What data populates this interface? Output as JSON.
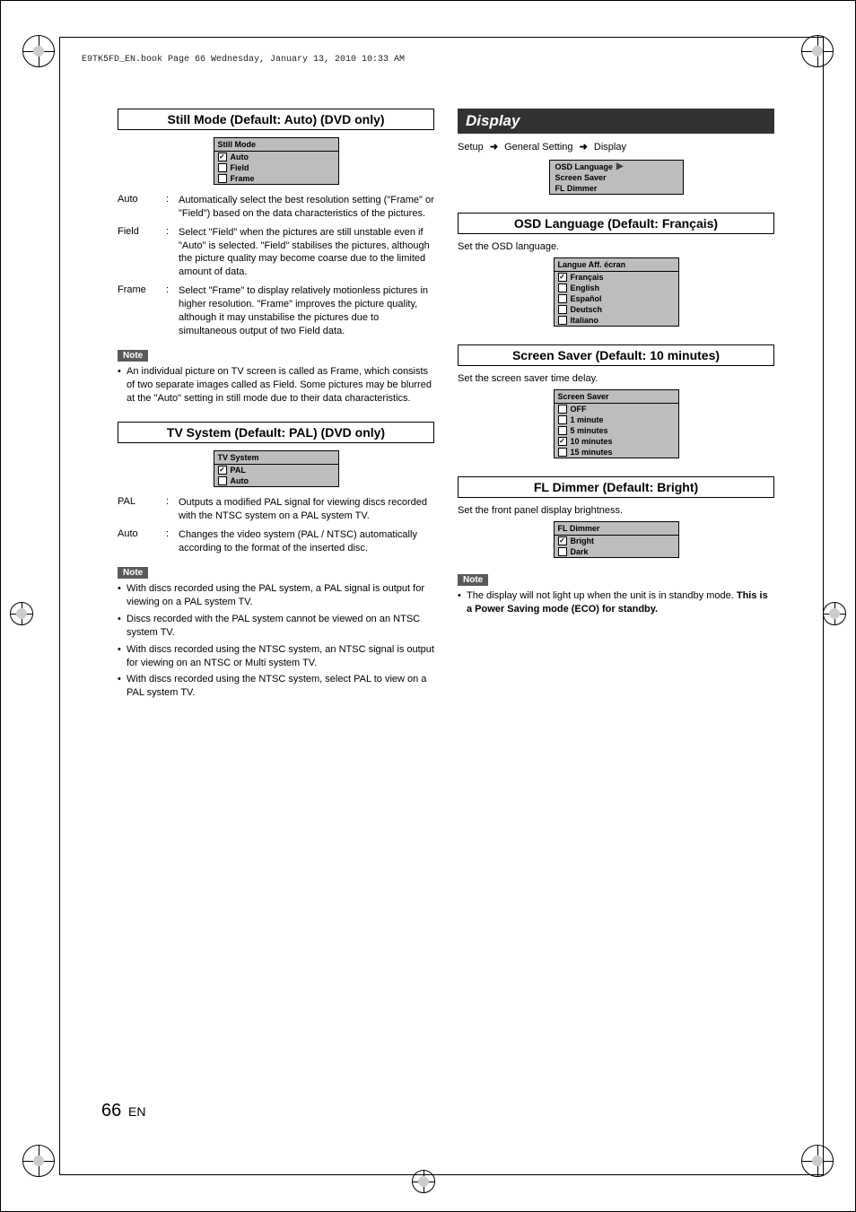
{
  "page_meta": {
    "header_line": "E9TK5FD_EN.book  Page 66  Wednesday, January 13, 2010  10:33 AM",
    "page_number": "66",
    "page_lang": "EN"
  },
  "colors": {
    "dark_header_bg": "#323232",
    "note_bg": "#5a5a5a",
    "menu_bg": "#bdbdbd"
  },
  "left": {
    "still_mode": {
      "title": "Still Mode (Default: Auto) (DVD only)",
      "menu_header": "Still Mode",
      "options": [
        {
          "label": "Auto",
          "checked": true
        },
        {
          "label": "Field",
          "checked": false
        },
        {
          "label": "Frame",
          "checked": false
        }
      ],
      "defs": [
        {
          "term": "Auto",
          "desc": "Automatically select the best resolution setting (\"Frame\" or \"Field\") based on the data characteristics of the pictures."
        },
        {
          "term": "Field",
          "desc": "Select \"Field\" when the pictures are still unstable even if \"Auto\" is selected. \"Field\" stabilises the pictures, although the picture quality may become coarse due to the limited amount of data."
        },
        {
          "term": "Frame",
          "desc": "Select \"Frame\" to display relatively motionless pictures in higher resolution. \"Frame\" improves the picture quality, although it may unstabilise the pictures due to simultaneous output of two Field data."
        }
      ],
      "note_label": "Note",
      "notes": [
        "An individual picture on TV screen is called as Frame, which consists of two separate images called as Field. Some pictures may be blurred at the \"Auto\" setting in still mode due to their data characteristics."
      ]
    },
    "tv_system": {
      "title": "TV System (Default: PAL) (DVD only)",
      "menu_header": "TV System",
      "options": [
        {
          "label": "PAL",
          "checked": true
        },
        {
          "label": "Auto",
          "checked": false
        }
      ],
      "defs": [
        {
          "term": "PAL",
          "desc": "Outputs a modified PAL signal for viewing discs recorded with the NTSC system on a PAL system TV."
        },
        {
          "term": "Auto",
          "desc": "Changes the video system (PAL / NTSC) automatically according to the format of the inserted disc."
        }
      ],
      "note_label": "Note",
      "notes": [
        "With discs recorded using the PAL system, a PAL signal is output for viewing on a PAL system TV.",
        "Discs recorded with the PAL system cannot be viewed on an NTSC system TV.",
        "With discs recorded using the NTSC system, an NTSC signal is output for viewing on an NTSC or Multi system TV.",
        "With discs recorded using the NTSC system, select PAL to view on a PAL system TV."
      ]
    }
  },
  "right": {
    "display_header": "Display",
    "breadcrumb": [
      "Setup",
      "General Setting",
      "Display"
    ],
    "display_menu": {
      "items": [
        "OSD Language",
        "Screen Saver",
        "FL Dimmer"
      ],
      "play_icon": "▶"
    },
    "osd": {
      "title": "OSD Language (Default: Français)",
      "desc": "Set the OSD language.",
      "menu_header": "Langue Aff. écran",
      "options": [
        {
          "label": "Français",
          "checked": true
        },
        {
          "label": "English",
          "checked": false
        },
        {
          "label": "Español",
          "checked": false
        },
        {
          "label": "Deutsch",
          "checked": false
        },
        {
          "label": "Italiano",
          "checked": false
        }
      ]
    },
    "saver": {
      "title": "Screen Saver (Default: 10 minutes)",
      "desc": "Set the screen saver time delay.",
      "menu_header": "Screen Saver",
      "options": [
        {
          "label": "OFF",
          "checked": false
        },
        {
          "label": "1 minute",
          "checked": false
        },
        {
          "label": "5 minutes",
          "checked": false
        },
        {
          "label": "10 minutes",
          "checked": true
        },
        {
          "label": "15 minutes",
          "checked": false
        }
      ]
    },
    "dimmer": {
      "title": "FL Dimmer (Default: Bright)",
      "desc": "Set the front panel display brightness.",
      "menu_header": "FL Dimmer",
      "options": [
        {
          "label": "Bright",
          "checked": true
        },
        {
          "label": "Dark",
          "checked": false
        }
      ],
      "note_label": "Note",
      "note_text": "The display will not light up when the unit is in standby mode. ",
      "note_bold": "This is a Power Saving mode (ECO) for standby."
    }
  }
}
